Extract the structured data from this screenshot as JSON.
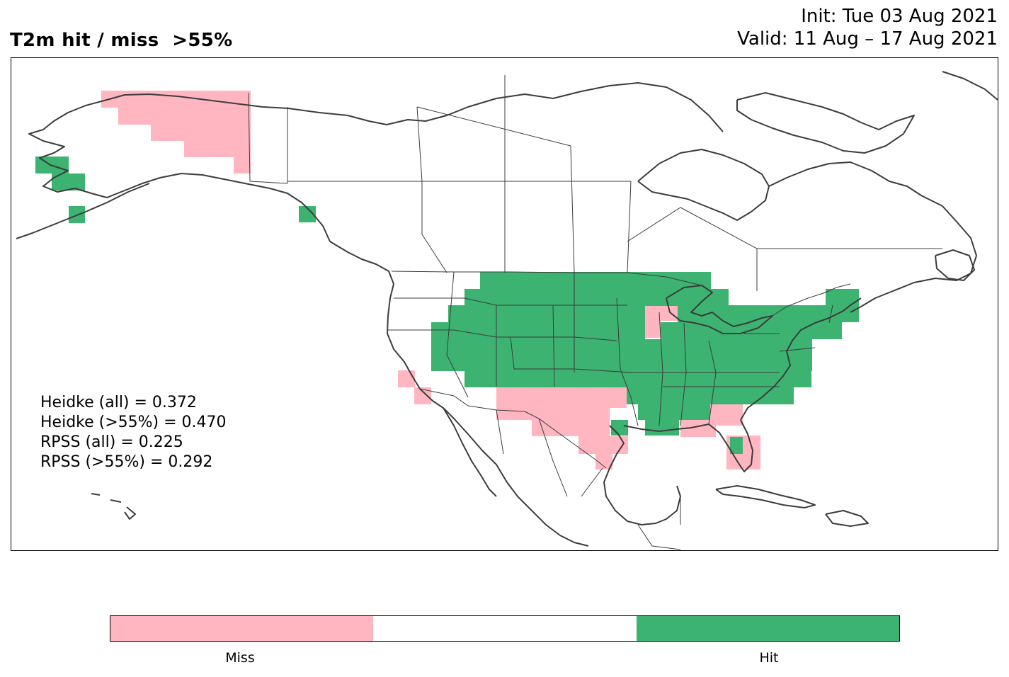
{
  "header": {
    "title": "T2m hit / miss  >55%",
    "init": "Init: Tue 03 Aug 2021",
    "valid": "Valid: 11 Aug – 17 Aug 2021"
  },
  "scores": [
    "Heidke (all) = 0.372",
    "Heidke (>55%) = 0.470",
    "RPSS (all) = 0.225",
    "RPSS (>55%) = 0.292"
  ],
  "legend": {
    "miss_label": "Miss",
    "hit_label": "Hit",
    "colors": {
      "miss": "#ffb6c1",
      "neutral": "#ffffff",
      "hit": "#3cb371"
    }
  },
  "map": {
    "region": "North America",
    "land_outline_color": "#3c3c3c",
    "border_color": "#3c3c3c"
  }
}
